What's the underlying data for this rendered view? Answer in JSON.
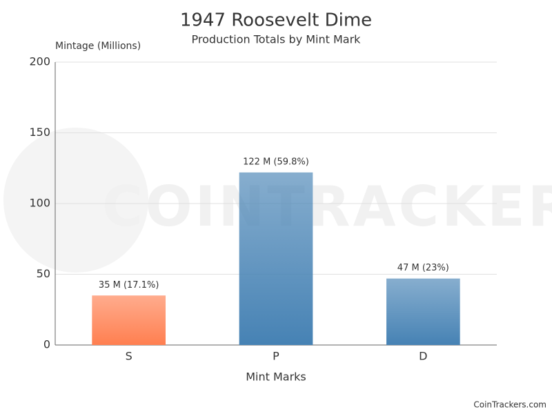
{
  "chart_data": {
    "type": "bar",
    "title": "1947 Roosevelt Dime",
    "subtitle": "Production Totals by Mint Mark",
    "y_label": "Mintage (Millions)",
    "x_label": "Mint Marks",
    "categories": [
      "S",
      "P",
      "D"
    ],
    "values": [
      35,
      122,
      47
    ],
    "value_labels": [
      "35 M (17.1%)",
      "122 M (59.8%)",
      "47 M (23%)"
    ],
    "colors": [
      "#ff7f50",
      "#4682b4",
      "#4682b4"
    ],
    "ylim": [
      0,
      200
    ],
    "yticks": [
      0,
      50,
      100,
      150,
      200
    ],
    "grid": true,
    "watermark": "COINTRACKERS",
    "credit": "CoinTrackers.com"
  }
}
